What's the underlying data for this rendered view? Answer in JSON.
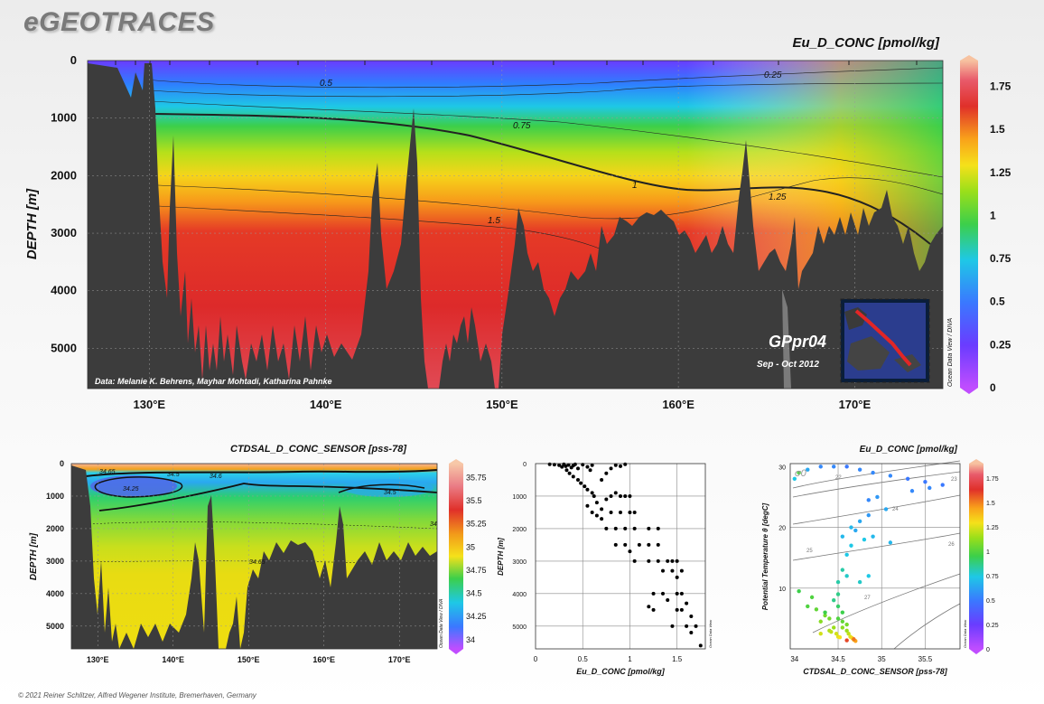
{
  "header": {
    "logo": "eGEOTRACES"
  },
  "footer": {
    "copyright": "© 2021 Reiner Schlitzer, Alfred Wegener Institute, Bremerhaven, Germany"
  },
  "colors": {
    "bathymetry": "#3c3c3c",
    "background": "#f2f2f2"
  },
  "chart_data": [
    {
      "type": "section",
      "title": "Eu_D_CONC [pmol/kg]",
      "ylabel": "DEPTH [m]",
      "x_ticks": [
        "130°E",
        "140°E",
        "150°E",
        "160°E",
        "170°E"
      ],
      "y_ticks": [
        "0",
        "1000",
        "2000",
        "3000",
        "4000",
        "5000"
      ],
      "ylim": [
        0,
        5700
      ],
      "xlim": [
        126.5,
        175
      ],
      "contour_labels": [
        "0.25",
        "0.5",
        "0.75",
        "1",
        "1.25",
        "1.5"
      ],
      "colorbar_ticks": [
        "1.75",
        "1.5",
        "1.25",
        "1",
        "0.75",
        "0.5",
        "0.25",
        "0"
      ],
      "colorbar_range": [
        0,
        1.9
      ],
      "cruise": "GPpr04",
      "dates": "Sep - Oct 2012",
      "credit": "Data: Melanie K. Behrens, Mayhar Mohtadi, Katharina Pahnke",
      "watermark": "Ocean Data View / DIVA"
    },
    {
      "type": "section",
      "title": "CTDSAL_D_CONC_SENSOR [pss-78]",
      "ylabel": "DEPTH [m]",
      "x_ticks": [
        "130°E",
        "140°E",
        "150°E",
        "160°E",
        "170°E"
      ],
      "y_ticks": [
        "0",
        "1000",
        "2000",
        "3000",
        "4000",
        "5000"
      ],
      "ylim": [
        0,
        5700
      ],
      "contour_labels": [
        "34.65",
        "34.5",
        "34.6",
        "34.25",
        "34.5",
        "34",
        "34.65"
      ],
      "colorbar_ticks": [
        "35.75",
        "35.5",
        "35.25",
        "35",
        "34.75",
        "34.5",
        "34.25",
        "34"
      ],
      "colorbar_range": [
        33.9,
        35.9
      ],
      "watermark": "Ocean Data View / DIVA"
    },
    {
      "type": "scatter",
      "xlabel": "Eu_D_CONC [pmol/kg]",
      "ylabel": "DEPTH [m]",
      "x_ticks": [
        "0",
        "0.5",
        "1",
        "1.5"
      ],
      "y_ticks": [
        "0",
        "1000",
        "2000",
        "3000",
        "4000",
        "5000"
      ],
      "xlim": [
        0,
        1.8
      ],
      "ylim": [
        0,
        5700
      ],
      "watermark": "Ocean Data View",
      "points": [
        [
          0.15,
          20
        ],
        [
          0.2,
          30
        ],
        [
          0.25,
          50
        ],
        [
          0.3,
          20
        ],
        [
          0.32,
          80
        ],
        [
          0.35,
          40
        ],
        [
          0.38,
          120
        ],
        [
          0.4,
          60
        ],
        [
          0.42,
          20
        ],
        [
          0.45,
          150
        ],
        [
          0.33,
          200
        ],
        [
          0.28,
          100
        ],
        [
          0.5,
          30
        ],
        [
          0.55,
          100
        ],
        [
          0.6,
          50
        ],
        [
          0.58,
          200
        ],
        [
          0.36,
          300
        ],
        [
          0.4,
          400
        ],
        [
          0.45,
          500
        ],
        [
          0.48,
          600
        ],
        [
          0.52,
          700
        ],
        [
          0.55,
          800
        ],
        [
          0.6,
          900
        ],
        [
          0.62,
          1000
        ],
        [
          0.7,
          500
        ],
        [
          0.75,
          300
        ],
        [
          0.8,
          150
        ],
        [
          0.85,
          50
        ],
        [
          0.9,
          80
        ],
        [
          0.95,
          20
        ],
        [
          0.65,
          1200
        ],
        [
          0.7,
          1400
        ],
        [
          0.75,
          1100
        ],
        [
          0.8,
          1000
        ],
        [
          0.85,
          900
        ],
        [
          0.9,
          1000
        ],
        [
          0.95,
          1000
        ],
        [
          1.0,
          1000
        ],
        [
          0.55,
          1300
        ],
        [
          0.6,
          1500
        ],
        [
          0.65,
          1600
        ],
        [
          0.7,
          1700
        ],
        [
          0.8,
          1500
        ],
        [
          0.9,
          1500
        ],
        [
          1.0,
          1500
        ],
        [
          1.05,
          1500
        ],
        [
          0.75,
          2000
        ],
        [
          0.85,
          2000
        ],
        [
          0.95,
          2000
        ],
        [
          1.05,
          2000
        ],
        [
          1.2,
          2000
        ],
        [
          1.3,
          2000
        ],
        [
          0.85,
          2500
        ],
        [
          0.95,
          2500
        ],
        [
          1.0,
          2700
        ],
        [
          1.1,
          2500
        ],
        [
          1.2,
          2500
        ],
        [
          1.3,
          2500
        ],
        [
          1.05,
          3000
        ],
        [
          1.2,
          3000
        ],
        [
          1.3,
          3000
        ],
        [
          1.4,
          3000
        ],
        [
          1.45,
          3000
        ],
        [
          1.5,
          3000
        ],
        [
          1.35,
          3300
        ],
        [
          1.45,
          3300
        ],
        [
          1.5,
          3500
        ],
        [
          1.55,
          3300
        ],
        [
          1.25,
          4000
        ],
        [
          1.35,
          4000
        ],
        [
          1.5,
          4000
        ],
        [
          1.55,
          4000
        ],
        [
          1.4,
          4200
        ],
        [
          1.5,
          4500
        ],
        [
          1.55,
          4500
        ],
        [
          1.6,
          4300
        ],
        [
          1.45,
          5000
        ],
        [
          1.6,
          5000
        ],
        [
          1.65,
          5200
        ],
        [
          1.7,
          5000
        ],
        [
          1.75,
          5600
        ],
        [
          1.2,
          4400
        ],
        [
          1.25,
          4500
        ],
        [
          1.65,
          4700
        ]
      ]
    },
    {
      "type": "scatter",
      "title": "Eu_D_CONC [pmol/kg]",
      "xlabel": "CTDSAL_D_CONC_SENSOR [pss-78]",
      "ylabel": "Potential Temperature θ [degC]",
      "x_ticks": [
        "34",
        "34.5",
        "35",
        "35.5"
      ],
      "y_ticks": [
        "10",
        "20",
        "30"
      ],
      "xlim": [
        33.95,
        35.9
      ],
      "ylim": [
        0,
        30.5
      ],
      "isopycnal_labels": [
        "22",
        "23",
        "24",
        "25",
        "26",
        "27"
      ],
      "sigma_label": "σ0",
      "colorbar_ticks": [
        "1.75",
        "1.5",
        "1.25",
        "1",
        "0.75",
        "0.5",
        "0.25",
        "0"
      ],
      "colorbar_range": [
        0,
        1.9
      ],
      "watermark": "Ocean Data View",
      "points": [
        [
          34.05,
          29,
          0.8
        ],
        [
          34.0,
          28,
          0.5
        ],
        [
          34.15,
          29.5,
          0.4
        ],
        [
          34.3,
          30,
          0.3
        ],
        [
          34.45,
          30,
          0.3
        ],
        [
          34.6,
          30,
          0.25
        ],
        [
          34.75,
          29.5,
          0.3
        ],
        [
          34.9,
          29,
          0.3
        ],
        [
          35.1,
          28.5,
          0.3
        ],
        [
          35.3,
          28,
          0.25
        ],
        [
          35.5,
          27.5,
          0.25
        ],
        [
          35.7,
          27,
          0.25
        ],
        [
          35.55,
          26.5,
          0.3
        ],
        [
          35.35,
          26,
          0.3
        ],
        [
          34.95,
          25,
          0.35
        ],
        [
          34.85,
          24.5,
          0.3
        ],
        [
          35.05,
          23,
          0.4
        ],
        [
          34.85,
          22,
          0.35
        ],
        [
          34.75,
          21,
          0.4
        ],
        [
          34.65,
          20,
          0.45
        ],
        [
          34.7,
          19.5,
          0.4
        ],
        [
          34.55,
          18.5,
          0.45
        ],
        [
          34.8,
          18,
          0.5
        ],
        [
          34.9,
          18.5,
          0.45
        ],
        [
          35.1,
          17.5,
          0.45
        ],
        [
          34.65,
          17,
          0.5
        ],
        [
          34.6,
          15.5,
          0.5
        ],
        [
          34.55,
          13,
          0.6
        ],
        [
          34.5,
          11,
          0.6
        ],
        [
          34.6,
          12,
          0.55
        ],
        [
          34.75,
          11,
          0.55
        ],
        [
          34.85,
          12,
          0.5
        ],
        [
          34.5,
          9,
          0.65
        ],
        [
          34.45,
          8,
          0.65
        ],
        [
          34.5,
          7,
          0.7
        ],
        [
          34.55,
          6,
          0.75
        ],
        [
          34.5,
          5,
          0.8
        ],
        [
          34.55,
          4.5,
          0.85
        ],
        [
          34.6,
          4,
          0.9
        ],
        [
          34.55,
          3.5,
          0.95
        ],
        [
          34.6,
          3,
          1.0
        ],
        [
          34.62,
          2.5,
          1.1
        ],
        [
          34.64,
          2,
          1.2
        ],
        [
          34.66,
          1.8,
          1.3
        ],
        [
          34.68,
          1.5,
          1.4
        ],
        [
          34.7,
          1.3,
          1.5
        ],
        [
          34.68,
          1.6,
          1.6
        ],
        [
          34.2,
          8.5,
          0.8
        ],
        [
          34.25,
          6.5,
          0.85
        ],
        [
          34.35,
          5.5,
          0.9
        ],
        [
          34.3,
          4.5,
          0.95
        ],
        [
          34.4,
          3,
          1.05
        ],
        [
          34.42,
          2.8,
          1.1
        ],
        [
          34.45,
          3.5,
          1.0
        ],
        [
          34.48,
          2.5,
          1.15
        ],
        [
          34.5,
          2,
          1.2
        ],
        [
          34.52,
          1.9,
          1.25
        ],
        [
          34.35,
          6,
          0.75
        ],
        [
          34.15,
          7,
          0.8
        ],
        [
          34.05,
          9.5,
          0.75
        ],
        [
          34.3,
          2.5,
          1.15
        ],
        [
          34.4,
          5,
          0.9
        ],
        [
          34.6,
          1.4,
          1.7
        ]
      ]
    }
  ]
}
